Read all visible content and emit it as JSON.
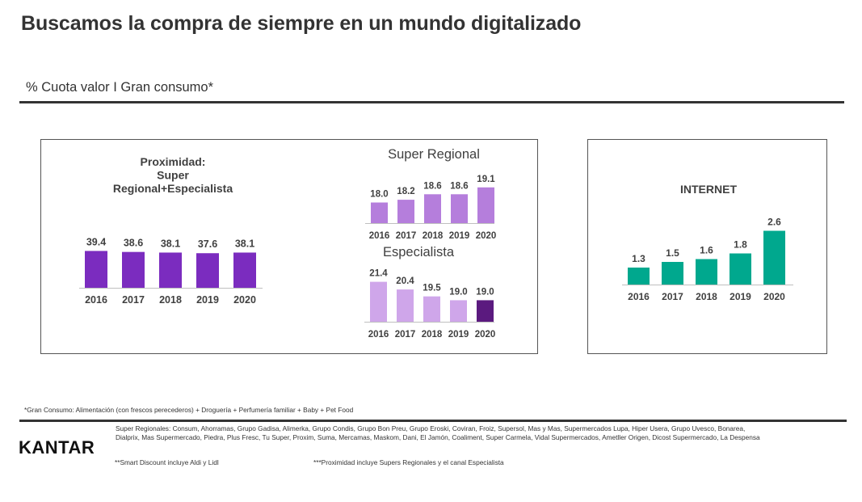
{
  "page": {
    "title": "Buscamos la compra de siempre en un mundo digitalizado",
    "subtitle": "% Cuota valor I Gran consumo*"
  },
  "colors": {
    "proximidad": "#7B2CBF",
    "super_regional": "#B57EDC",
    "especialista_light": "#CFA6EA",
    "especialista_highlight": "#5B1A7F",
    "internet": "#00A88E",
    "axis": "#BFBFBF"
  },
  "chart_data": [
    {
      "type": "bar",
      "id": "proximidad",
      "title": "Proximidad:\nSuper\nRegional+Especialista",
      "categories": [
        "2016",
        "2017",
        "2018",
        "2019",
        "2020"
      ],
      "series": [
        {
          "values": [
            39.4,
            38.6,
            38.1,
            37.6,
            38.1
          ]
        }
      ],
      "data_labels": [
        "39.4",
        "38.6",
        "38.1",
        "37.6",
        "38.1"
      ]
    },
    {
      "type": "bar",
      "id": "super_regional",
      "title": "Super Regional",
      "categories": [
        "2016",
        "2017",
        "2018",
        "2019",
        "2020"
      ],
      "series": [
        {
          "values": [
            18.0,
            18.2,
            18.6,
            18.6,
            19.1
          ]
        }
      ],
      "data_labels": [
        "18.0",
        "18.2",
        "18.6",
        "18.6",
        "19.1"
      ]
    },
    {
      "type": "bar",
      "id": "especialista",
      "title": "Especialista",
      "categories": [
        "2016",
        "2017",
        "2018",
        "2019",
        "2020"
      ],
      "series": [
        {
          "values": [
            21.4,
            20.4,
            19.5,
            19.0,
            19.0
          ]
        }
      ],
      "data_labels": [
        "21.4",
        "20.4",
        "19.5",
        "19.0",
        "19.0"
      ],
      "highlight_index": 4
    },
    {
      "type": "bar",
      "id": "internet",
      "title": "INTERNET",
      "categories": [
        "2016",
        "2017",
        "2018",
        "2019",
        "2020"
      ],
      "series": [
        {
          "values": [
            1.3,
            1.5,
            1.6,
            1.8,
            2.6
          ]
        }
      ],
      "data_labels": [
        "1.3",
        "1.5",
        "1.6",
        "1.8",
        "2.6"
      ]
    }
  ],
  "footnotes": {
    "gran_consumo": "*Gran Consumo: Alimentación (con frescos perecederos) + Droguería + Perfumería familiar + Baby + Pet Food",
    "super_regionales": "Super Regionales: Consum, Ahorramas, Grupo Gadisa, Alimerka, Grupo Condis, Grupo Bon Preu,  Grupo Eroski, Coviran, Froiz, Supersol, Mas y Mas, Supermercados Lupa, Hiper Usera, Grupo Uvesco, Bonarea, Dialprix, Mas Supermercado, Piedra, Plus Fresc, Tu Super, Proxim, Suma, Mercamas, Maskom, Dani, El Jamón, Coaliment, Super Carmela, Vidal Supermercados, Ametller Origen, Dicost Supermercado, La Despensa",
    "smart_discount": "**Smart Discount incluye Aldi y Lidl",
    "proximidad": "***Proximidad incluye Supers Regionales y el canal Especialista"
  },
  "logo": "KANTAR"
}
